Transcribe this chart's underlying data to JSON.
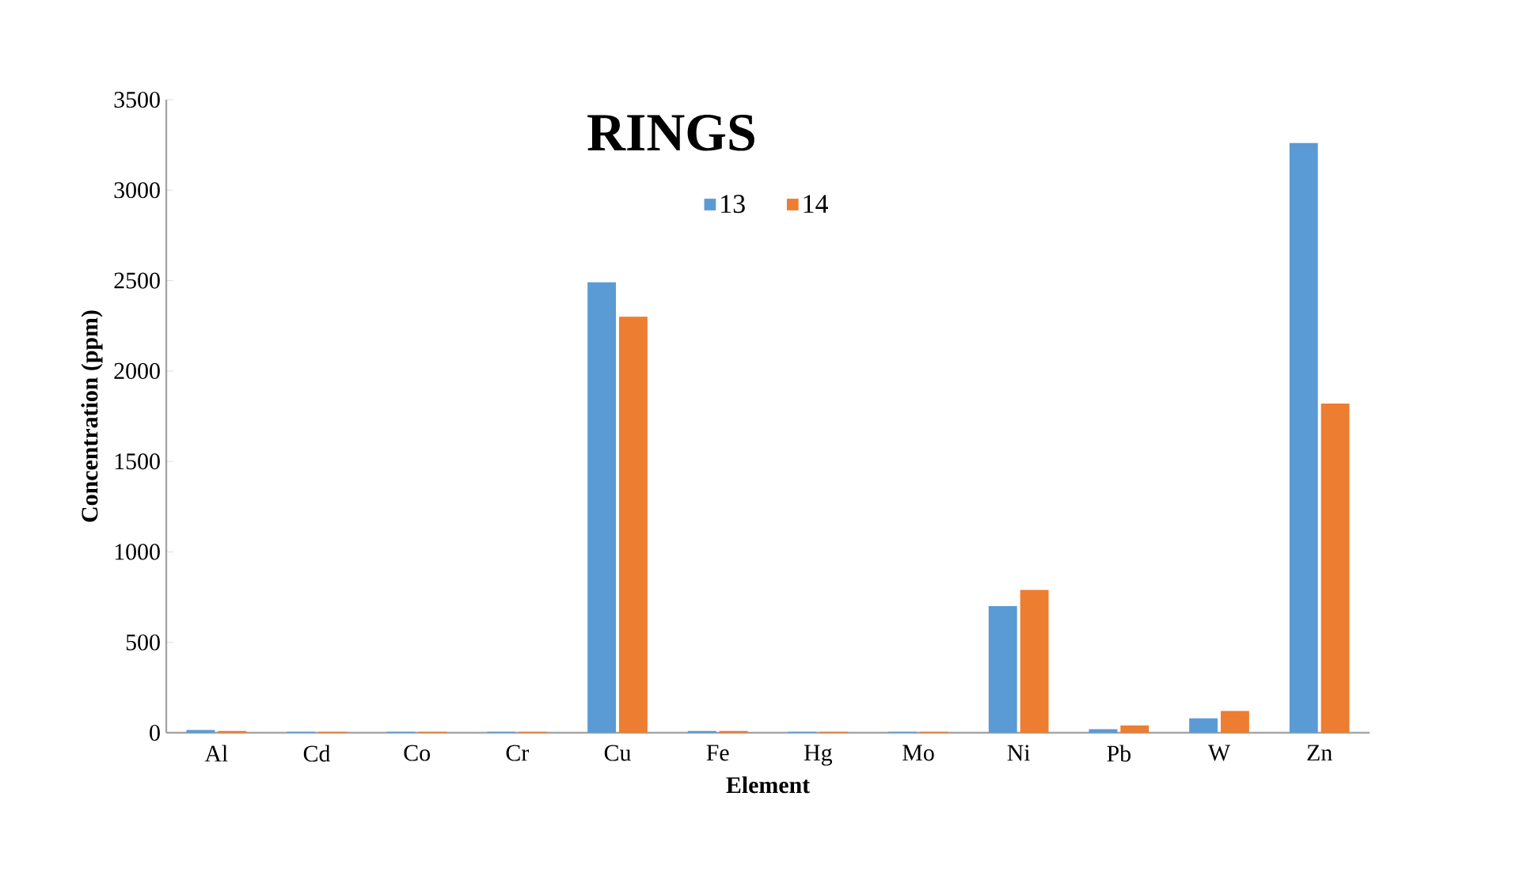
{
  "chart_data": {
    "type": "bar",
    "title": "RINGS",
    "xlabel": "Element",
    "ylabel": "Concentration (ppm)",
    "categories": [
      "Al",
      "Cd",
      "Co",
      "Cr",
      "Cu",
      "Fe",
      "Hg",
      "Mo",
      "Ni",
      "Pb",
      "W",
      "Zn"
    ],
    "series": [
      {
        "name": "13",
        "color": "#5b9bd5",
        "values": [
          15,
          5,
          5,
          5,
          2490,
          10,
          5,
          5,
          700,
          20,
          80,
          3260
        ]
      },
      {
        "name": "14",
        "color": "#ed7d31",
        "values": [
          10,
          5,
          5,
          5,
          2300,
          10,
          5,
          5,
          790,
          40,
          120,
          1820
        ]
      }
    ],
    "ylim": [
      0,
      3500
    ],
    "yticks": [
      0,
      500,
      1000,
      1500,
      2000,
      2500,
      3000,
      3500
    ],
    "grid": false,
    "legend": "top"
  }
}
